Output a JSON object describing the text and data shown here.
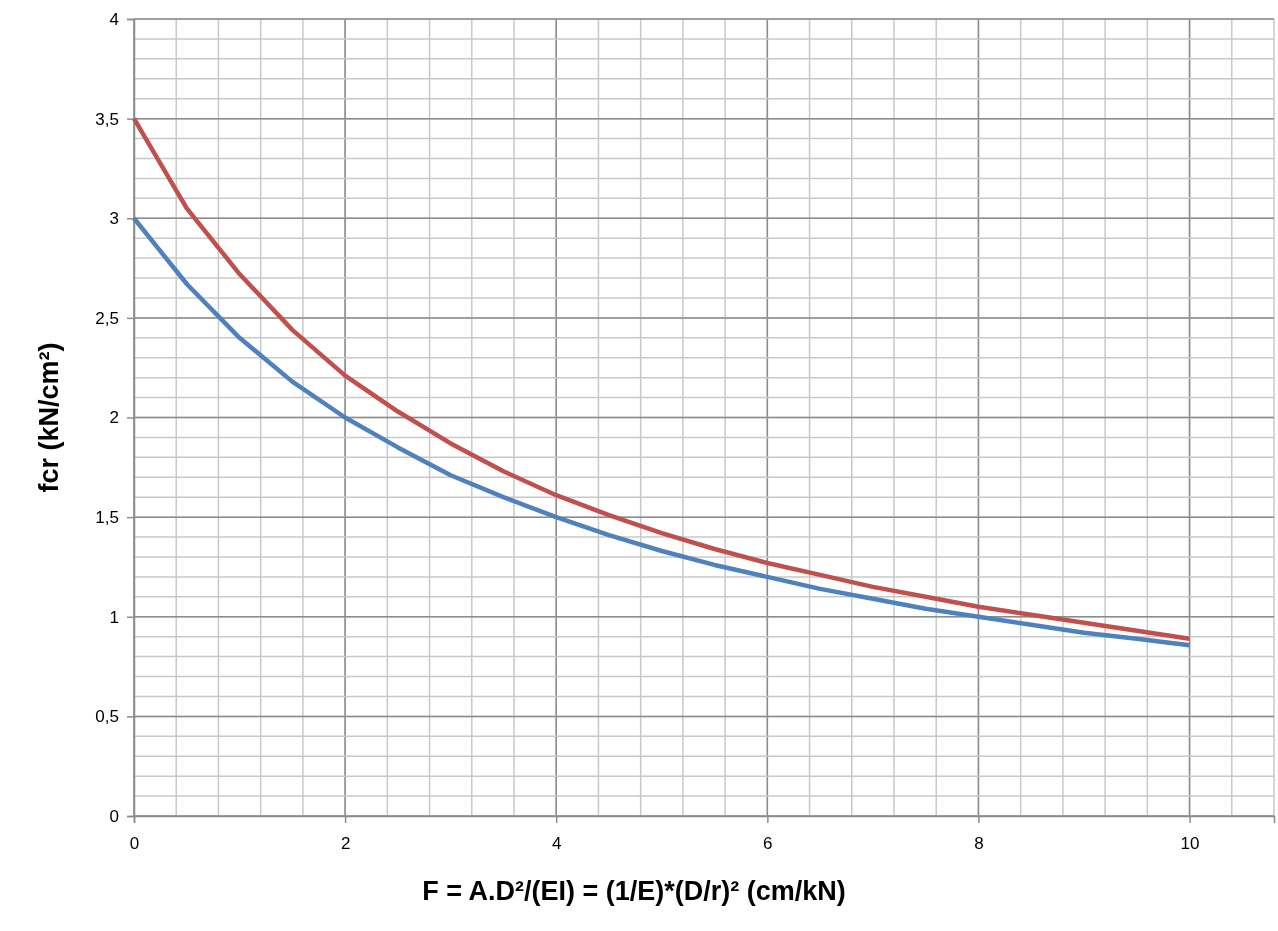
{
  "chart_data": {
    "type": "line",
    "xlabel": "F = A.D²/(EI) = (1/E)*(D/r)² (cm/kN)",
    "ylabel": "fcr (kN/cm²)",
    "x": [
      0,
      0.5,
      1,
      1.5,
      2,
      2.5,
      3,
      3.5,
      4,
      4.5,
      5,
      5.5,
      6,
      6.5,
      7,
      7.5,
      8,
      8.5,
      9,
      9.5,
      10
    ],
    "series": [
      {
        "color": "#c0504d",
        "values": [
          3.5,
          3.05,
          2.72,
          2.44,
          2.21,
          2.03,
          1.87,
          1.73,
          1.61,
          1.51,
          1.42,
          1.34,
          1.27,
          1.21,
          1.15,
          1.1,
          1.05,
          1.01,
          0.97,
          0.93,
          0.89
        ]
      },
      {
        "color": "#4f81bd",
        "values": [
          3.0,
          2.67,
          2.4,
          2.18,
          2.0,
          1.85,
          1.71,
          1.6,
          1.5,
          1.41,
          1.33,
          1.26,
          1.2,
          1.14,
          1.09,
          1.04,
          1.0,
          0.96,
          0.92,
          0.89,
          0.857
        ]
      }
    ],
    "xlim": [
      0,
      10.8
    ],
    "xticks": [
      0,
      2,
      4,
      6,
      8,
      10
    ],
    "ylim": [
      0,
      4
    ],
    "yticks": [
      0,
      {
        "value": 0.5,
        "label": "0,5"
      },
      1,
      {
        "value": 1.5,
        "label": "1,5"
      },
      2,
      {
        "value": 2.5,
        "label": "2,5"
      },
      3,
      {
        "value": 3.5,
        "label": "3,5"
      },
      4
    ],
    "grid": true,
    "marker": "none",
    "line_style": "solid"
  }
}
